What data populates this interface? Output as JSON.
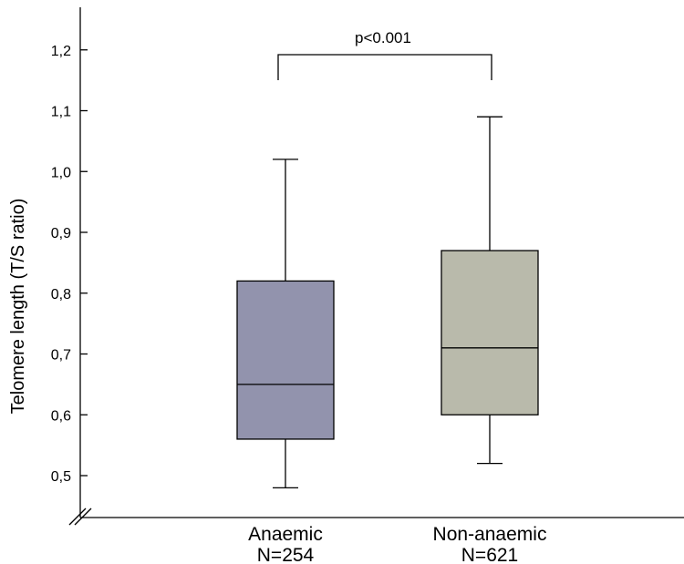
{
  "chart_data": {
    "type": "box",
    "ylabel": "Telomere length (T/S ratio)",
    "ylim": [
      0.47,
      1.27
    ],
    "yticks": [
      "0,5",
      "0,6",
      "0,7",
      "0,8",
      "0,9",
      "1,0",
      "1,1",
      "1,2"
    ],
    "ytick_values": [
      0.5,
      0.6,
      0.7,
      0.8,
      0.9,
      1.0,
      1.1,
      1.2
    ],
    "axis_break": true,
    "categories": [
      {
        "label": "Anaemic",
        "n_label": "N=254"
      },
      {
        "label": "Non-anaemic",
        "n_label": "N=621"
      }
    ],
    "series": [
      {
        "whisker_low": 0.48,
        "q1": 0.56,
        "median": 0.65,
        "q3": 0.82,
        "whisker_high": 1.02,
        "color": "#9293ad"
      },
      {
        "whisker_low": 0.52,
        "q1": 0.6,
        "median": 0.71,
        "q3": 0.87,
        "whisker_high": 1.09,
        "color": "#b9baab"
      }
    ],
    "annotation": {
      "text": "p<0.001",
      "y": 1.195
    }
  }
}
